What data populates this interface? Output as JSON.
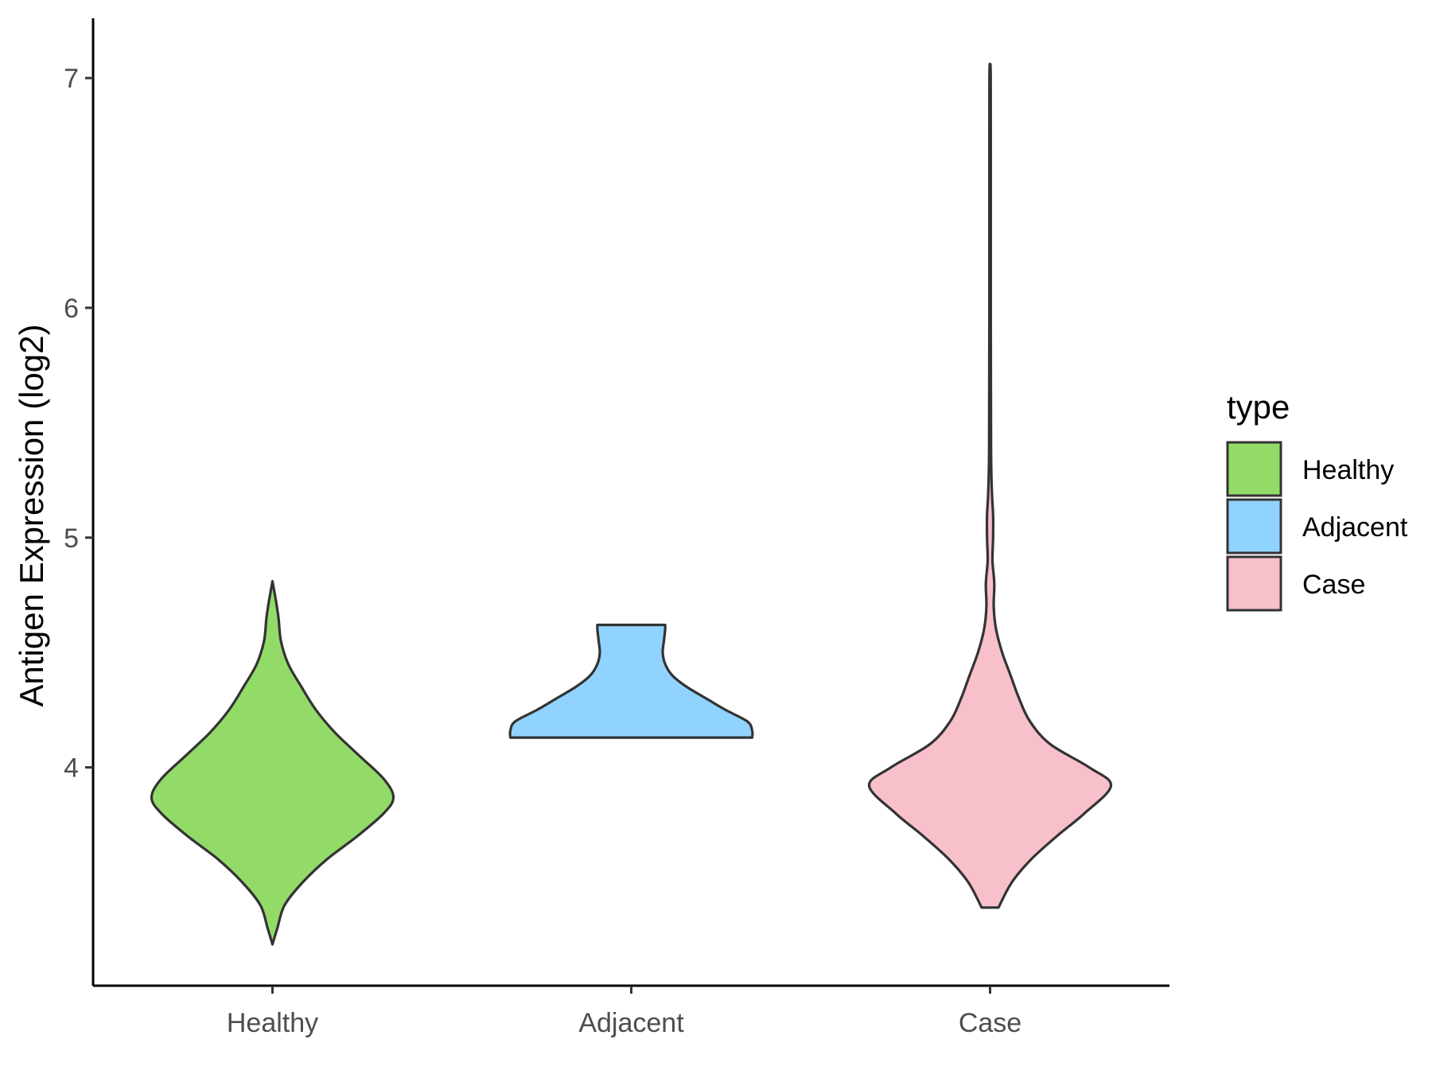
{
  "chart_data": {
    "type": "violin",
    "xlabel": "",
    "ylabel": "Antigen Expression (log2)",
    "categories": [
      "Healthy",
      "Adjacent",
      "Case"
    ],
    "yticks": [
      4,
      5,
      6,
      7
    ],
    "ylim": [
      3.05,
      7.26
    ],
    "grid": false,
    "legend": {
      "title": "type",
      "position": "right",
      "entries": [
        "Healthy",
        "Adjacent",
        "Case"
      ]
    },
    "series": [
      {
        "category": "Healthy",
        "color": "#93DB69",
        "min": 3.23,
        "max": 4.81,
        "profile": [
          [
            3.23,
            0.0
          ],
          [
            3.3,
            0.04
          ],
          [
            3.4,
            0.1
          ],
          [
            3.5,
            0.25
          ],
          [
            3.6,
            0.45
          ],
          [
            3.7,
            0.7
          ],
          [
            3.8,
            0.92
          ],
          [
            3.87,
            1.0
          ],
          [
            3.95,
            0.92
          ],
          [
            4.05,
            0.72
          ],
          [
            4.15,
            0.52
          ],
          [
            4.25,
            0.36
          ],
          [
            4.35,
            0.24
          ],
          [
            4.45,
            0.13
          ],
          [
            4.55,
            0.07
          ],
          [
            4.65,
            0.05
          ],
          [
            4.72,
            0.03
          ],
          [
            4.81,
            0.0
          ]
        ]
      },
      {
        "category": "Adjacent",
        "color": "#91D3FF",
        "min": 4.13,
        "max": 4.62,
        "profile": [
          [
            4.13,
            1.0
          ],
          [
            4.16,
            1.0
          ],
          [
            4.2,
            0.96
          ],
          [
            4.25,
            0.78
          ],
          [
            4.3,
            0.62
          ],
          [
            4.35,
            0.46
          ],
          [
            4.4,
            0.34
          ],
          [
            4.45,
            0.28
          ],
          [
            4.5,
            0.26
          ],
          [
            4.55,
            0.27
          ],
          [
            4.6,
            0.28
          ],
          [
            4.62,
            0.28
          ]
        ]
      },
      {
        "category": "Case",
        "color": "#F7C0CB",
        "min": 3.39,
        "max": 7.06,
        "profile": [
          [
            3.39,
            0.07
          ],
          [
            3.5,
            0.18
          ],
          [
            3.6,
            0.34
          ],
          [
            3.7,
            0.55
          ],
          [
            3.8,
            0.78
          ],
          [
            3.92,
            1.0
          ],
          [
            4.0,
            0.82
          ],
          [
            4.1,
            0.5
          ],
          [
            4.2,
            0.33
          ],
          [
            4.3,
            0.24
          ],
          [
            4.4,
            0.17
          ],
          [
            4.5,
            0.1
          ],
          [
            4.6,
            0.05
          ],
          [
            4.7,
            0.03
          ],
          [
            4.8,
            0.035
          ],
          [
            4.9,
            0.02
          ],
          [
            5.0,
            0.025
          ],
          [
            5.1,
            0.025
          ],
          [
            5.2,
            0.015
          ],
          [
            5.4,
            0.008
          ],
          [
            6.0,
            0.006
          ],
          [
            6.5,
            0.006
          ],
          [
            7.0,
            0.005
          ],
          [
            7.06,
            0.0
          ]
        ]
      }
    ]
  }
}
